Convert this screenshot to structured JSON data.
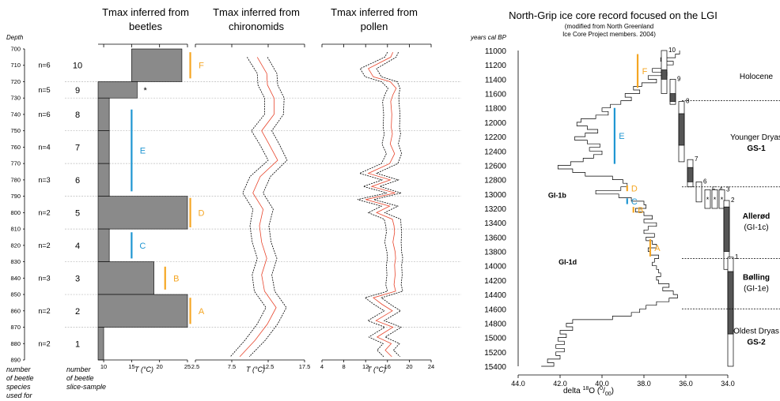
{
  "colors": {
    "black": "#000000",
    "grid": "#bbbbbb",
    "bar_fill": "#8a8a8a",
    "red": "#e8452c",
    "orange": "#f5a623",
    "blue": "#1f96d2",
    "dark_fill": "#555555"
  },
  "chart_data": [
    {
      "type": "bar",
      "panel": "beetles",
      "title": "Tmax inferred from beetles",
      "xlabel": "T (°C)",
      "ylabel": "Depth",
      "y_reversed": true,
      "ylim": [
        700,
        890
      ],
      "xlim": [
        9,
        25
      ],
      "xticks": [
        10,
        15,
        20,
        25
      ],
      "yticks": [
        700,
        710,
        720,
        730,
        740,
        750,
        760,
        770,
        780,
        790,
        800,
        810,
        820,
        830,
        840,
        850,
        860,
        870,
        880,
        890
      ],
      "col_labels": [
        "number of beetle species used for",
        "number of beetle slice-sample"
      ],
      "samples": [
        {
          "id": "10",
          "n": "n=6",
          "top": 700,
          "bottom": 720,
          "from": 15,
          "to": 24
        },
        {
          "id": "9",
          "n": "n=5",
          "top": 720,
          "bottom": 730,
          "from": 9,
          "to": 16,
          "mark": "*"
        },
        {
          "id": "8",
          "n": "n=6",
          "top": 730,
          "bottom": 750,
          "from": 9,
          "to": 11
        },
        {
          "id": "7",
          "n": "n=4",
          "top": 750,
          "bottom": 770,
          "from": 9,
          "to": 11
        },
        {
          "id": "6",
          "n": "n=3",
          "top": 770,
          "bottom": 790,
          "from": 9,
          "to": 11
        },
        {
          "id": "5",
          "n": "n=2",
          "top": 790,
          "bottom": 810,
          "from": 9,
          "to": 25
        },
        {
          "id": "4",
          "n": "n=2",
          "top": 810,
          "bottom": 830,
          "from": 9,
          "to": 11
        },
        {
          "id": "3",
          "n": "n=3",
          "top": 830,
          "bottom": 850,
          "from": 9,
          "to": 19
        },
        {
          "id": "2",
          "n": "n=2",
          "top": 850,
          "bottom": 870,
          "from": 9,
          "to": 25
        },
        {
          "id": "1",
          "n": "n=2",
          "top": 870,
          "bottom": 890,
          "from": 9,
          "to": 10
        }
      ],
      "zones": [
        {
          "label": "F",
          "color": "orange",
          "x": 25.5,
          "from": 702,
          "to": 718
        },
        {
          "label": "E",
          "color": "blue",
          "x": 15,
          "from": 737,
          "to": 787
        },
        {
          "label": "D",
          "color": "orange",
          "x": 25.5,
          "from": 791,
          "to": 809
        },
        {
          "label": "C",
          "color": "blue",
          "x": 15,
          "from": 812,
          "to": 828
        },
        {
          "label": "B",
          "color": "orange",
          "x": 21,
          "from": 833,
          "to": 847
        },
        {
          "label": "A",
          "color": "orange",
          "x": 25.5,
          "from": 852,
          "to": 868
        }
      ]
    },
    {
      "type": "line",
      "panel": "chironomids",
      "title": "Tmax inferred from chironomids",
      "xlabel": "T (°C)",
      "xlim": [
        2.5,
        17.5
      ],
      "xticks": [
        2.5,
        7.5,
        12.5,
        17.5
      ],
      "tick_labels": [
        "2.5",
        "7.5",
        "12.5",
        "17.5"
      ],
      "depth": [
        705,
        715,
        722,
        730,
        740,
        750,
        758,
        768,
        778,
        788,
        798,
        808,
        818,
        828,
        838,
        848,
        858,
        868,
        878,
        888
      ],
      "series": [
        {
          "role": "mean",
          "color": "red",
          "values": [
            11.0,
            12.3,
            12.4,
            13.3,
            13.3,
            11.6,
            12.6,
            13.8,
            11.4,
            10.4,
            11.8,
            11.3,
            11.6,
            12.3,
            11.6,
            12.0,
            13.6,
            12.4,
            10.7,
            8.6
          ]
        },
        {
          "role": "lower",
          "color": "black",
          "values": [
            9.6,
            11.0,
            11.1,
            12.0,
            12.0,
            10.2,
            11.3,
            12.5,
            10.0,
            9.0,
            10.4,
            10.0,
            10.3,
            11.0,
            10.3,
            10.6,
            12.2,
            11.0,
            9.3,
            7.3
          ]
        },
        {
          "role": "upper",
          "color": "black",
          "values": [
            12.4,
            13.7,
            13.8,
            14.7,
            14.6,
            13.0,
            14.0,
            15.1,
            12.8,
            11.8,
            13.2,
            12.6,
            12.9,
            13.7,
            13.0,
            13.4,
            15.0,
            13.8,
            12.1,
            9.9
          ]
        }
      ]
    },
    {
      "type": "line",
      "panel": "pollen",
      "title": "Tmax inferred from pollen",
      "xlabel": "T (°C)",
      "xlim": [
        4,
        24
      ],
      "xticks": [
        4,
        8,
        12,
        16,
        20,
        24
      ],
      "tick_labels": [
        "4",
        "8",
        "12",
        "16",
        "20",
        "24"
      ],
      "depth": [
        702,
        705,
        712,
        717,
        720,
        724,
        728,
        732,
        740,
        748,
        752,
        758,
        764,
        770,
        776,
        780,
        784,
        788,
        792,
        796,
        800,
        804,
        808,
        812,
        818,
        824,
        828,
        832,
        838,
        844,
        848,
        852,
        856,
        860,
        866,
        870,
        876,
        880,
        884,
        888
      ],
      "series": [
        {
          "role": "mean",
          "color": "red",
          "values": [
            17.0,
            16.6,
            12.5,
            13.4,
            16.5,
            17.6,
            17.0,
            16.6,
            16.8,
            16.7,
            16.9,
            16.5,
            17.3,
            16.4,
            12.5,
            16.5,
            13.1,
            17.4,
            12.0,
            16.4,
            14.0,
            16.9,
            17.2,
            17.3,
            17.0,
            17.4,
            17.5,
            17.3,
            17.4,
            17.2,
            17.5,
            13.4,
            15.0,
            16.9,
            13.9,
            17.0,
            14.1,
            16.7,
            15.6,
            16.8
          ]
        },
        {
          "role": "lower",
          "color": "black",
          "values": [
            16.0,
            15.5,
            11.0,
            11.9,
            14.9,
            16.1,
            15.5,
            15.1,
            15.3,
            15.2,
            15.4,
            15.0,
            15.8,
            14.9,
            10.9,
            15.0,
            11.6,
            15.9,
            10.5,
            14.9,
            12.5,
            15.4,
            15.7,
            15.8,
            15.5,
            15.9,
            16.0,
            15.8,
            15.9,
            15.7,
            16.0,
            11.9,
            13.5,
            15.4,
            12.4,
            15.5,
            12.6,
            15.2,
            14.1,
            15.3
          ]
        },
        {
          "role": "upper",
          "color": "black",
          "values": [
            18.0,
            17.6,
            14.0,
            14.9,
            17.8,
            18.3,
            18.1,
            18.1,
            18.3,
            18.2,
            18.4,
            18.0,
            18.6,
            17.9,
            14.0,
            18.0,
            14.6,
            18.5,
            13.5,
            17.9,
            15.5,
            18.4,
            18.5,
            18.6,
            18.5,
            18.6,
            18.8,
            18.6,
            18.7,
            18.5,
            18.8,
            14.9,
            16.5,
            18.4,
            15.4,
            18.5,
            15.6,
            18.2,
            17.1,
            18.3
          ]
        }
      ]
    },
    {
      "type": "line",
      "panel": "ngrip",
      "title": "North-Grip ice core record focused on the LGI",
      "subtitle": "(modified from North Greenland Ice Core Project members. 2004)",
      "xlabel": "delta 18O (‰)",
      "ylabel": "years cal BP",
      "y_reversed": true,
      "x_reversed": true,
      "xlim": [
        44,
        33
      ],
      "ylim": [
        11000,
        15400
      ],
      "xticks": [
        44.0,
        42.0,
        40.0,
        38.0,
        36.0,
        34.0
      ],
      "tick_labels": [
        "44.0",
        "42.0",
        "40.0",
        "38.0",
        "36.0",
        "34.0"
      ],
      "yticks": [
        11000,
        11200,
        11400,
        11600,
        11800,
        12000,
        12200,
        12400,
        12600,
        12800,
        13000,
        13200,
        13400,
        13600,
        13800,
        14000,
        14200,
        14400,
        14600,
        14800,
        15000,
        15200,
        15400
      ],
      "curve": {
        "age": [
          11000,
          11050,
          11100,
          11150,
          11200,
          11250,
          11300,
          11350,
          11400,
          11450,
          11500,
          11550,
          11600,
          11650,
          11700,
          11750,
          11800,
          11850,
          11900,
          11950,
          12000,
          12050,
          12100,
          12150,
          12200,
          12250,
          12300,
          12350,
          12400,
          12450,
          12500,
          12550,
          12600,
          12650,
          12700,
          12750,
          12800,
          12850,
          12900,
          12950,
          13000,
          13050,
          13100,
          13150,
          13200,
          13250,
          13300,
          13350,
          13400,
          13450,
          13500,
          13550,
          13600,
          13650,
          13700,
          13750,
          13800,
          13850,
          13900,
          13950,
          14000,
          14050,
          14100,
          14150,
          14200,
          14250,
          14300,
          14350,
          14400,
          14450,
          14500,
          14550,
          14600,
          14650,
          14700,
          14750,
          14800,
          14850,
          14900,
          14950,
          15000,
          15050,
          15100,
          15150,
          15200,
          15250,
          15300,
          15350,
          15400
        ],
        "d18o": [
          36.3,
          36.5,
          37.2,
          36.6,
          37.0,
          37.6,
          36.9,
          37.8,
          37.4,
          38.1,
          38.5,
          38.2,
          38.9,
          38.6,
          39.1,
          39.6,
          40.0,
          39.7,
          40.3,
          41.0,
          41.2,
          40.7,
          40.2,
          40.8,
          41.3,
          40.7,
          40.1,
          40.6,
          40.0,
          40.4,
          40.9,
          41.5,
          42.1,
          41.4,
          40.8,
          39.5,
          39.0,
          38.8,
          39.1,
          40.3,
          39.2,
          38.6,
          38.0,
          37.9,
          38.4,
          38.0,
          37.6,
          38.0,
          37.4,
          37.8,
          38.0,
          37.5,
          37.9,
          37.6,
          37.4,
          37.8,
          37.7,
          37.3,
          37.5,
          37.6,
          37.4,
          37.3,
          37.2,
          37.4,
          37.3,
          36.8,
          37.1,
          36.6,
          36.4,
          36.8,
          37.4,
          37.9,
          38.2,
          38.6,
          39.5,
          41.4,
          41.7,
          41.4,
          42.0,
          41.7,
          42.1,
          41.8,
          42.2,
          41.8,
          42.2,
          42.0,
          42.6,
          42.3,
          42.9
        ]
      },
      "series": [
        {
          "name": "Holocene",
          "label2": "",
          "from": 11000,
          "to": 11700
        },
        {
          "name": "Younger Dryas",
          "label2": "GS-1",
          "from": 11700,
          "to": 12900
        },
        {
          "name": "Allerød",
          "label2": "(GI-1c)",
          "from": 12900,
          "to": 13900
        },
        {
          "name": "Bølling",
          "label2": "(GI-1e)",
          "from": 13900,
          "to": 14600
        },
        {
          "name": "Oldest Dryas",
          "label2": "GS-2",
          "from": 14600,
          "to": 15400
        }
      ],
      "annotations": [
        {
          "text": "GI-1b",
          "age": 13020,
          "x": 41.7
        },
        {
          "text": "GI-1d",
          "age": 13950,
          "x": 41.2
        }
      ],
      "zones": [
        {
          "label": "F",
          "color": "orange",
          "x": 38.3,
          "from": 11050,
          "to": 11520
        },
        {
          "label": "E",
          "color": "blue",
          "x": 39.4,
          "from": 11800,
          "to": 12580
        },
        {
          "label": "D",
          "color": "orange",
          "x": 38.8,
          "from": 12880,
          "to": 12960
        },
        {
          "label": "C",
          "color": "blue",
          "x": 38.8,
          "from": 13060,
          "to": 13140
        },
        {
          "label": "B",
          "color": "orange",
          "x": 38.5,
          "from": 13180,
          "to": 13260
        },
        {
          "label": "A",
          "color": "orange",
          "x": 37.7,
          "from": 13630,
          "to": 13870
        }
      ],
      "samples": [
        {
          "id": "10",
          "col": 0,
          "from": 11000,
          "to": 11600,
          "dark_from": 11270,
          "dark_to": 11400
        },
        {
          "id": "9",
          "col": 1,
          "from": 11400,
          "to": 11750,
          "dark_from": 11600,
          "dark_to": 11710
        },
        {
          "id": "8",
          "col": 2,
          "from": 11710,
          "to": 12550,
          "dark_from": 11880,
          "dark_to": 12320
        },
        {
          "id": "7",
          "col": 3,
          "from": 12520,
          "to": 12900,
          "dark_from": 12630,
          "dark_to": 12830
        },
        {
          "id": "6",
          "col": 4,
          "from": 12830,
          "to": 13110,
          "dark_from": null,
          "dark_to": null
        },
        {
          "id": "5",
          "col": 5,
          "from": 12940,
          "to": 13200,
          "dark_from": null,
          "dark_to": null,
          "mark": "*"
        },
        {
          "id": "4",
          "col": 6,
          "from": 12940,
          "to": 13200,
          "dark_from": null,
          "dark_to": null,
          "mark": "*"
        },
        {
          "id": "3",
          "col": 7,
          "from": 12940,
          "to": 13200,
          "dark_from": null,
          "dark_to": null,
          "mark": "*"
        },
        {
          "id": "2",
          "col": 8,
          "from": 13090,
          "to": 14050,
          "dark_from": 13180,
          "dark_to": 13800
        },
        {
          "id": "1",
          "col": 9,
          "from": 13880,
          "to": 15400,
          "dark_from": 14080,
          "dark_to": 14950
        }
      ]
    }
  ]
}
